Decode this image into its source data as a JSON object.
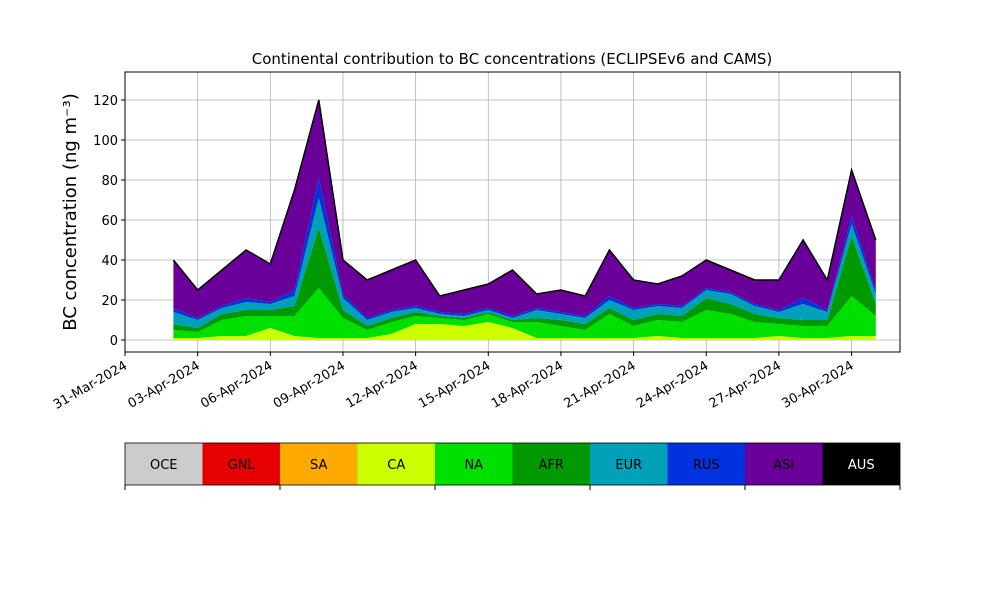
{
  "chart_data": {
    "type": "stacked-area",
    "title": "Continental contribution to BC concentrations (ECLIPSEv6 and CAMS)",
    "y_label": "BC concentration (ng m⁻³)",
    "x": [
      "02-Apr-2024",
      "03-Apr-2024",
      "04-Apr-2024",
      "05-Apr-2024",
      "06-Apr-2024",
      "07-Apr-2024",
      "08-Apr-2024",
      "09-Apr-2024",
      "10-Apr-2024",
      "11-Apr-2024",
      "12-Apr-2024",
      "13-Apr-2024",
      "14-Apr-2024",
      "15-Apr-2024",
      "16-Apr-2024",
      "17-Apr-2024",
      "18-Apr-2024",
      "19-Apr-2024",
      "20-Apr-2024",
      "21-Apr-2024",
      "22-Apr-2024",
      "23-Apr-2024",
      "24-Apr-2024",
      "25-Apr-2024",
      "26-Apr-2024",
      "27-Apr-2024",
      "28-Apr-2024",
      "29-Apr-2024",
      "30-Apr-2024",
      "01-May-2024"
    ],
    "series": [
      {
        "name": "OCE",
        "color": "#cccccc",
        "values": [
          0,
          0,
          0,
          0,
          0,
          0,
          0,
          0,
          0,
          0,
          0,
          0,
          0,
          0,
          0,
          0,
          0,
          0,
          0,
          0,
          0,
          0,
          0,
          0,
          0,
          0,
          0,
          0,
          0,
          0
        ]
      },
      {
        "name": "GNL",
        "color": "#e60000",
        "values": [
          0,
          0,
          0,
          0,
          0,
          0,
          0,
          0,
          0,
          0,
          0,
          0,
          0,
          0,
          0,
          0,
          0,
          0,
          0,
          0,
          0,
          0,
          0,
          0,
          0,
          0,
          0,
          0,
          0,
          0
        ]
      },
      {
        "name": "SA",
        "color": "#ffaa00",
        "values": [
          0,
          0,
          0,
          0,
          0,
          0,
          0,
          0,
          0,
          0,
          0,
          0,
          0,
          0,
          0,
          0,
          0,
          0,
          0,
          0,
          0,
          0,
          0,
          0,
          0,
          0,
          0,
          0,
          0,
          0
        ]
      },
      {
        "name": "CA",
        "color": "#ccff00",
        "values": [
          1,
          1,
          2,
          2,
          6,
          2,
          1,
          1,
          1,
          3,
          8,
          8,
          7,
          9,
          6,
          1,
          1,
          1,
          1,
          1,
          2,
          1,
          1,
          1,
          1,
          2,
          1,
          1,
          2,
          2
        ]
      },
      {
        "name": "NA",
        "color": "#00e000",
        "values": [
          4,
          3,
          8,
          10,
          6,
          10,
          25,
          10,
          4,
          6,
          4,
          3,
          3,
          4,
          3,
          8,
          6,
          4,
          12,
          6,
          8,
          8,
          14,
          12,
          8,
          6,
          6,
          6,
          20,
          10
        ]
      },
      {
        "name": "AFR",
        "color": "#009900",
        "values": [
          3,
          2,
          3,
          3,
          3,
          5,
          30,
          4,
          2,
          2,
          2,
          1,
          1,
          1,
          1,
          2,
          3,
          3,
          3,
          3,
          3,
          3,
          6,
          5,
          4,
          3,
          3,
          3,
          30,
          6
        ]
      },
      {
        "name": "EUR",
        "color": "#00a0b8",
        "values": [
          6,
          4,
          3,
          4,
          3,
          5,
          15,
          6,
          3,
          3,
          2,
          1,
          1,
          1,
          1,
          4,
          3,
          3,
          4,
          5,
          4,
          4,
          4,
          5,
          4,
          3,
          8,
          4,
          6,
          5
        ]
      },
      {
        "name": "RUS",
        "color": "#0033dd",
        "values": [
          2,
          1,
          1,
          2,
          1,
          3,
          10,
          2,
          1,
          1,
          1,
          1,
          1,
          1,
          1,
          1,
          1,
          1,
          2,
          1,
          1,
          1,
          1,
          1,
          1,
          1,
          3,
          1,
          4,
          2
        ]
      },
      {
        "name": "ASI",
        "color": "#6a0099",
        "values": [
          24,
          14,
          18,
          24,
          19,
          50,
          39,
          17,
          19,
          20,
          23,
          8,
          12,
          12,
          23,
          7,
          11,
          10,
          23,
          14,
          10,
          15,
          14,
          11,
          12,
          15,
          29,
          15,
          23,
          25
        ]
      },
      {
        "name": "AUS",
        "color": "#000000",
        "values": [
          0,
          0,
          0,
          0,
          0,
          0,
          0,
          0,
          0,
          0,
          0,
          0,
          0,
          0,
          0,
          0,
          0,
          0,
          0,
          0,
          0,
          0,
          0,
          0,
          0,
          0,
          0,
          0,
          0,
          0
        ]
      }
    ],
    "xlim": [
      "31-Mar-2024",
      "02-May-2024"
    ],
    "xticks": [
      "31-Mar-2024",
      "03-Apr-2024",
      "06-Apr-2024",
      "09-Apr-2024",
      "12-Apr-2024",
      "15-Apr-2024",
      "18-Apr-2024",
      "21-Apr-2024",
      "24-Apr-2024",
      "27-Apr-2024",
      "30-Apr-2024"
    ],
    "ylim": [
      -6,
      134
    ],
    "yticks": [
      0,
      20,
      40,
      60,
      80,
      100,
      120
    ],
    "grid": true
  }
}
